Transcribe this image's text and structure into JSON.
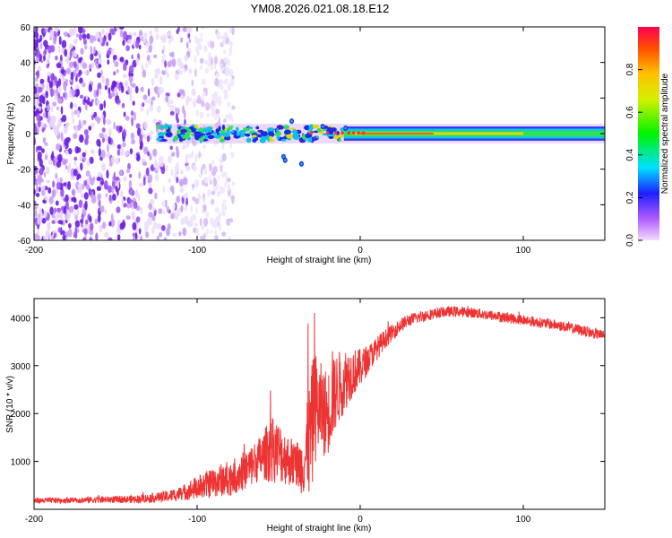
{
  "figure": {
    "title": "YM08.2026.021.08.18.E12"
  },
  "chart_data": [
    {
      "type": "heatmap",
      "name": "spectrogram",
      "title": "YM08.2026.021.08.18.E12",
      "xlabel": "Height of straight line (km)",
      "ylabel": "Frequency (Hz)",
      "xlim": [
        -200,
        150
      ],
      "ylim": [
        -60,
        60
      ],
      "x_ticks": [
        -200,
        -100,
        0,
        100
      ],
      "y_ticks": [
        -60,
        -40,
        -20,
        0,
        20,
        40,
        60
      ],
      "colorbar": {
        "label": "Normalized spectral amplitude",
        "range": [
          0.0,
          1.0
        ],
        "ticks": [
          0.0,
          0.2,
          0.4,
          0.6,
          0.8
        ],
        "tick_labels": [
          "0.0",
          "0.2",
          "0.4",
          "0.6",
          "0.8"
        ],
        "colormap": "purple-blue-cyan-green-yellow-red"
      },
      "features": {
        "noise_region_x": [
          -200,
          -80
        ],
        "signal_start_x": -125,
        "signal_center_freq": 0,
        "signal_halfwidth_hz": 5
      }
    },
    {
      "type": "line",
      "name": "snr",
      "xlabel": "Height of straight line (km)",
      "ylabel": "SNR (10 * v/v)",
      "xlim": [
        -200,
        150
      ],
      "ylim": [
        0,
        4400
      ],
      "x_ticks": [
        -200,
        -100,
        0,
        100
      ],
      "y_ticks": [
        1000,
        2000,
        3000,
        4000
      ],
      "color": "#ee3333",
      "series": [
        {
          "name": "SNR",
          "x": [
            -200,
            -180,
            -160,
            -140,
            -130,
            -120,
            -110,
            -100,
            -90,
            -80,
            -70,
            -60,
            -55,
            -50,
            -45,
            -40,
            -35,
            -30,
            -28,
            -25,
            -20,
            -15,
            -10,
            -5,
            0,
            5,
            10,
            15,
            20,
            25,
            30,
            40,
            50,
            60,
            70,
            80,
            90,
            100,
            110,
            120,
            130,
            140,
            150
          ],
          "y": [
            180,
            190,
            200,
            210,
            230,
            260,
            330,
            450,
            560,
            660,
            820,
            1100,
            1250,
            1200,
            1050,
            950,
            900,
            1550,
            2150,
            2100,
            2000,
            2450,
            2700,
            2850,
            2950,
            3150,
            3350,
            3550,
            3700,
            3850,
            3950,
            4050,
            4120,
            4130,
            4100,
            4050,
            4000,
            3950,
            3900,
            3850,
            3780,
            3700,
            3620
          ]
        }
      ],
      "noise_amplitude": [
        60,
        60,
        70,
        80,
        90,
        120,
        150,
        250,
        320,
        380,
        420,
        480,
        700,
        650,
        550,
        500,
        600,
        1400,
        1200,
        1000,
        900,
        800,
        700,
        520,
        400,
        300,
        250,
        200,
        170,
        150,
        130,
        120,
        110,
        110,
        110,
        110,
        110,
        110,
        110,
        110,
        110,
        110,
        110
      ],
      "spikes": [
        {
          "x": -55,
          "y": 2480
        },
        {
          "x": -32,
          "y": 3880
        },
        {
          "x": -28,
          "y": 4100
        },
        {
          "x": -17,
          "y": 3300
        }
      ]
    }
  ]
}
